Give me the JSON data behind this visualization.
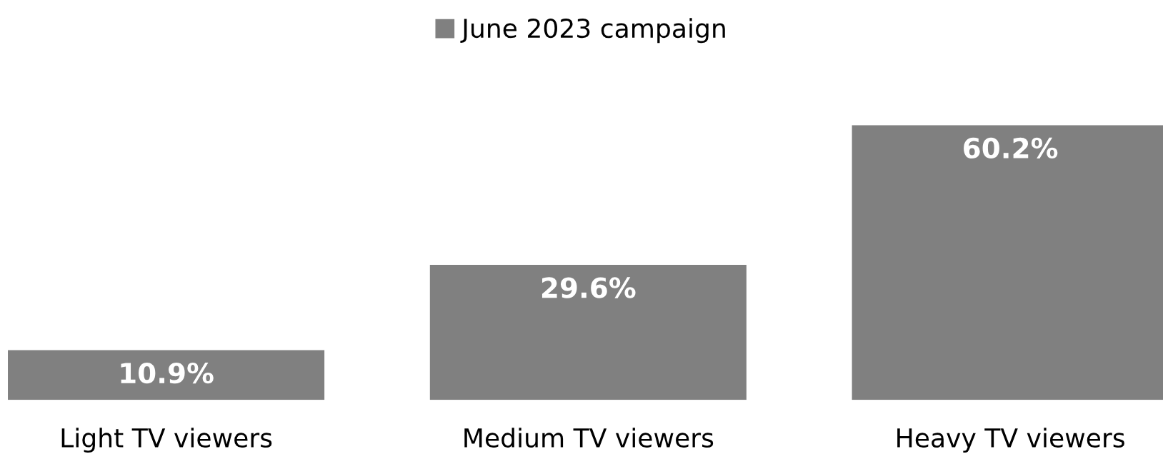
{
  "chart_data": {
    "type": "bar",
    "categories": [
      "Light TV viewers",
      "Medium TV viewers",
      "Heavy TV viewers"
    ],
    "series": [
      {
        "name": "June 2023 campaign",
        "color": "#808080",
        "values": [
          10.9,
          29.6,
          60.2
        ],
        "value_labels": [
          "10.9%",
          "29.6%",
          "60.2%"
        ]
      }
    ],
    "legend": "top",
    "grid": false
  }
}
